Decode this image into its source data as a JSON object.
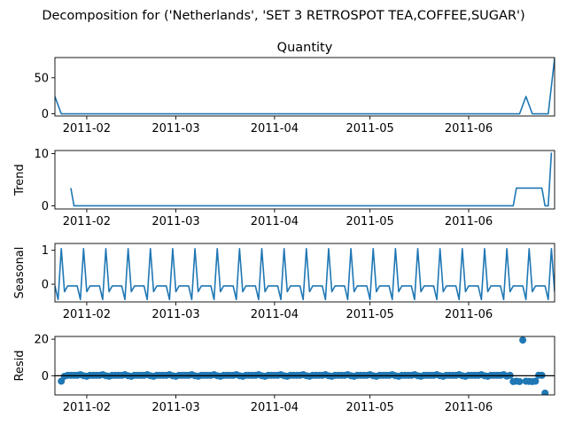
{
  "figure": {
    "title": "Decomposition for ('Netherlands', 'SET 3 RETROSPOT TEA,COFFEE,SUGAR')"
  },
  "chart_data": [
    {
      "id": "observed",
      "type": "line",
      "title": "Quantity",
      "ylabel": "",
      "ylim": [
        -3,
        78
      ],
      "yticks": [
        0,
        50
      ],
      "xlim": [
        "2011-01-22",
        "2011-06-28"
      ],
      "xticks": [
        {
          "date": "2011-02-01",
          "label": "2011-02"
        },
        {
          "date": "2011-03-01",
          "label": "2011-03"
        },
        {
          "date": "2011-04-01",
          "label": "2011-04"
        },
        {
          "date": "2011-05-01",
          "label": "2011-05"
        },
        {
          "date": "2011-06-01",
          "label": "2011-06"
        }
      ],
      "points": [
        [
          "2011-01-22",
          24
        ],
        [
          "2011-01-24",
          0
        ],
        [
          "2011-06-17",
          0
        ],
        [
          "2011-06-19",
          24
        ],
        [
          "2011-06-21",
          0
        ],
        [
          "2011-06-26",
          0
        ],
        [
          "2011-06-28",
          77
        ]
      ]
    },
    {
      "id": "trend",
      "type": "line",
      "title": "",
      "ylabel": "Trend",
      "ylim": [
        -0.6,
        10.6
      ],
      "yticks": [
        0,
        10
      ],
      "xlim": [
        "2011-01-22",
        "2011-06-28"
      ],
      "xticks": [
        {
          "date": "2011-02-01",
          "label": "2011-02"
        },
        {
          "date": "2011-03-01",
          "label": "2011-03"
        },
        {
          "date": "2011-04-01",
          "label": "2011-04"
        },
        {
          "date": "2011-05-01",
          "label": "2011-05"
        },
        {
          "date": "2011-06-01",
          "label": "2011-06"
        }
      ],
      "points": [
        [
          "2011-01-27",
          3.4
        ],
        [
          "2011-01-28",
          0
        ],
        [
          "2011-06-15",
          0
        ],
        [
          "2011-06-16",
          3.4
        ],
        [
          "2011-06-24",
          3.4
        ],
        [
          "2011-06-25",
          0
        ],
        [
          "2011-06-26",
          0
        ],
        [
          "2011-06-27",
          10.2
        ]
      ]
    },
    {
      "id": "seasonal",
      "type": "line",
      "title": "",
      "ylabel": "Seasonal",
      "ylim": [
        -0.52,
        1.2
      ],
      "yticks": [
        0,
        1
      ],
      "xlim": [
        "2011-01-22",
        "2011-06-28"
      ],
      "xticks": [
        {
          "date": "2011-02-01",
          "label": "2011-02"
        },
        {
          "date": "2011-03-01",
          "label": "2011-03"
        },
        {
          "date": "2011-04-01",
          "label": "2011-04"
        },
        {
          "date": "2011-05-01",
          "label": "2011-05"
        },
        {
          "date": "2011-06-01",
          "label": "2011-06"
        }
      ],
      "period_days": 7,
      "pattern": [
        1.05,
        -0.22,
        -0.05,
        -0.05,
        -0.05,
        -0.05,
        -0.45
      ],
      "pattern_start": "2011-01-24",
      "range": [
        "2011-01-22",
        "2011-06-28"
      ]
    },
    {
      "id": "resid",
      "type": "scatter",
      "title": "",
      "ylabel": "Resid",
      "ylim": [
        -10.5,
        21.5
      ],
      "yticks": [
        0,
        20
      ],
      "xlim": [
        "2011-01-22",
        "2011-06-28"
      ],
      "xticks": [
        {
          "date": "2011-02-01",
          "label": "2011-02"
        },
        {
          "date": "2011-03-01",
          "label": "2011-03"
        },
        {
          "date": "2011-04-01",
          "label": "2011-04"
        },
        {
          "date": "2011-05-01",
          "label": "2011-05"
        },
        {
          "date": "2011-06-01",
          "label": "2011-06"
        }
      ],
      "zero_line": true,
      "range": [
        "2011-01-25",
        "2011-06-12"
      ],
      "baseline_pattern": [
        0,
        -0.3,
        0.2,
        0.2,
        0.2,
        0.2,
        0.6
      ],
      "baseline_start": "2011-01-24",
      "extra_points": [
        [
          "2011-01-24",
          -3.0
        ],
        [
          "2011-06-13",
          -0.2
        ],
        [
          "2011-06-14",
          0.2
        ],
        [
          "2011-06-15",
          -3.2
        ],
        [
          "2011-06-16",
          -3.0
        ],
        [
          "2011-06-17",
          -3.2
        ],
        [
          "2011-06-18",
          19.5
        ],
        [
          "2011-06-19",
          -3.0
        ],
        [
          "2011-06-20",
          -3.1
        ],
        [
          "2011-06-21",
          -3.2
        ],
        [
          "2011-06-22",
          -3.0
        ],
        [
          "2011-06-23",
          0.3
        ],
        [
          "2011-06-24",
          0.2
        ],
        [
          "2011-06-25",
          -9.5
        ]
      ]
    }
  ]
}
